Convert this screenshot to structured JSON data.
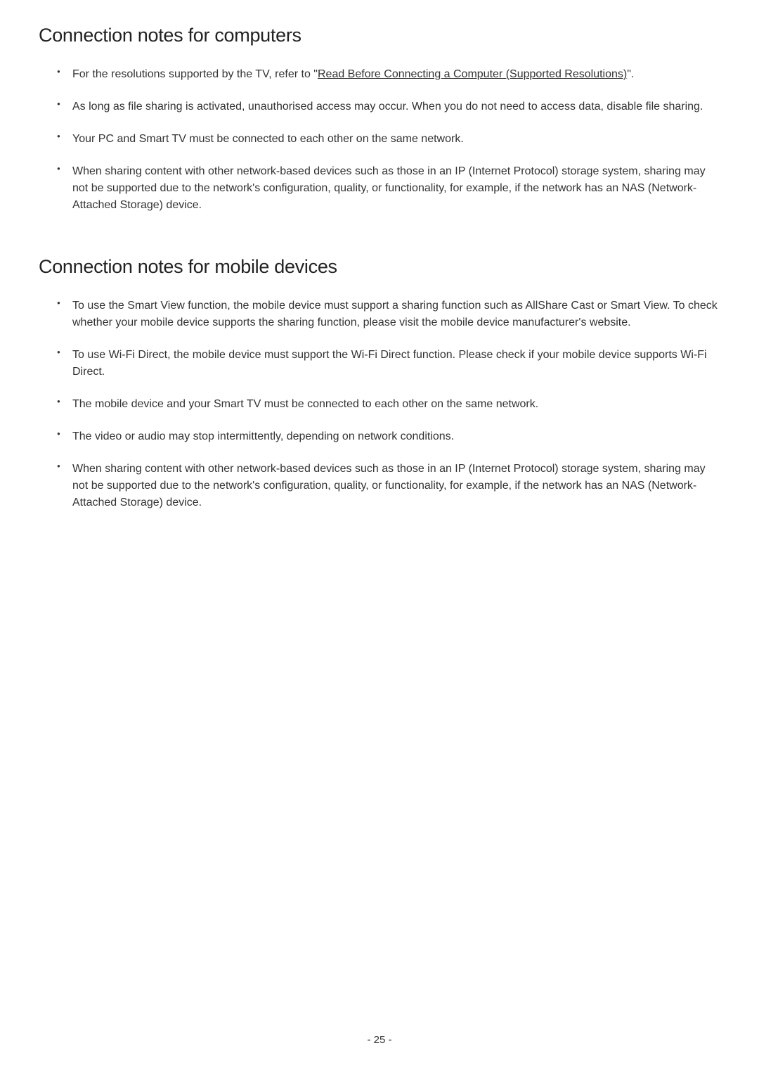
{
  "sections": [
    {
      "heading": "Connection notes for computers",
      "items": [
        {
          "prefix": "For the resolutions supported by the TV, refer to \"",
          "link": "Read Before Connecting a Computer (Supported Resolutions)",
          "suffix": "\"."
        },
        {
          "text": "As long as file sharing is activated, unauthorised access may occur. When you do not need to access data, disable file sharing."
        },
        {
          "text": "Your PC and Smart TV must be connected to each other on the same network."
        },
        {
          "text": "When sharing content with other network-based devices such as those in an IP (Internet Protocol) storage system, sharing may not be supported due to the network's configuration, quality, or functionality, for example, if the network has an NAS (Network-Attached Storage) device."
        }
      ]
    },
    {
      "heading": "Connection notes for mobile devices",
      "items": [
        {
          "text": "To use the Smart View function, the mobile device must support a sharing function such as AllShare Cast or Smart View. To check whether your mobile device supports the sharing function, please visit the mobile device manufacturer's website."
        },
        {
          "text": "To use Wi-Fi Direct, the mobile device must support the Wi-Fi Direct function. Please check if your mobile device supports Wi-Fi Direct."
        },
        {
          "text": "The mobile device and your Smart TV must be connected to each other on the same network."
        },
        {
          "text": "The video or audio may stop intermittently, depending on network conditions."
        },
        {
          "text": "When sharing content with other network-based devices such as those in an IP (Internet Protocol) storage system, sharing may not be supported due to the network's configuration, quality, or functionality, for example, if the network has an NAS (Network-Attached Storage) device."
        }
      ]
    }
  ],
  "pageNumber": "- 25 -"
}
